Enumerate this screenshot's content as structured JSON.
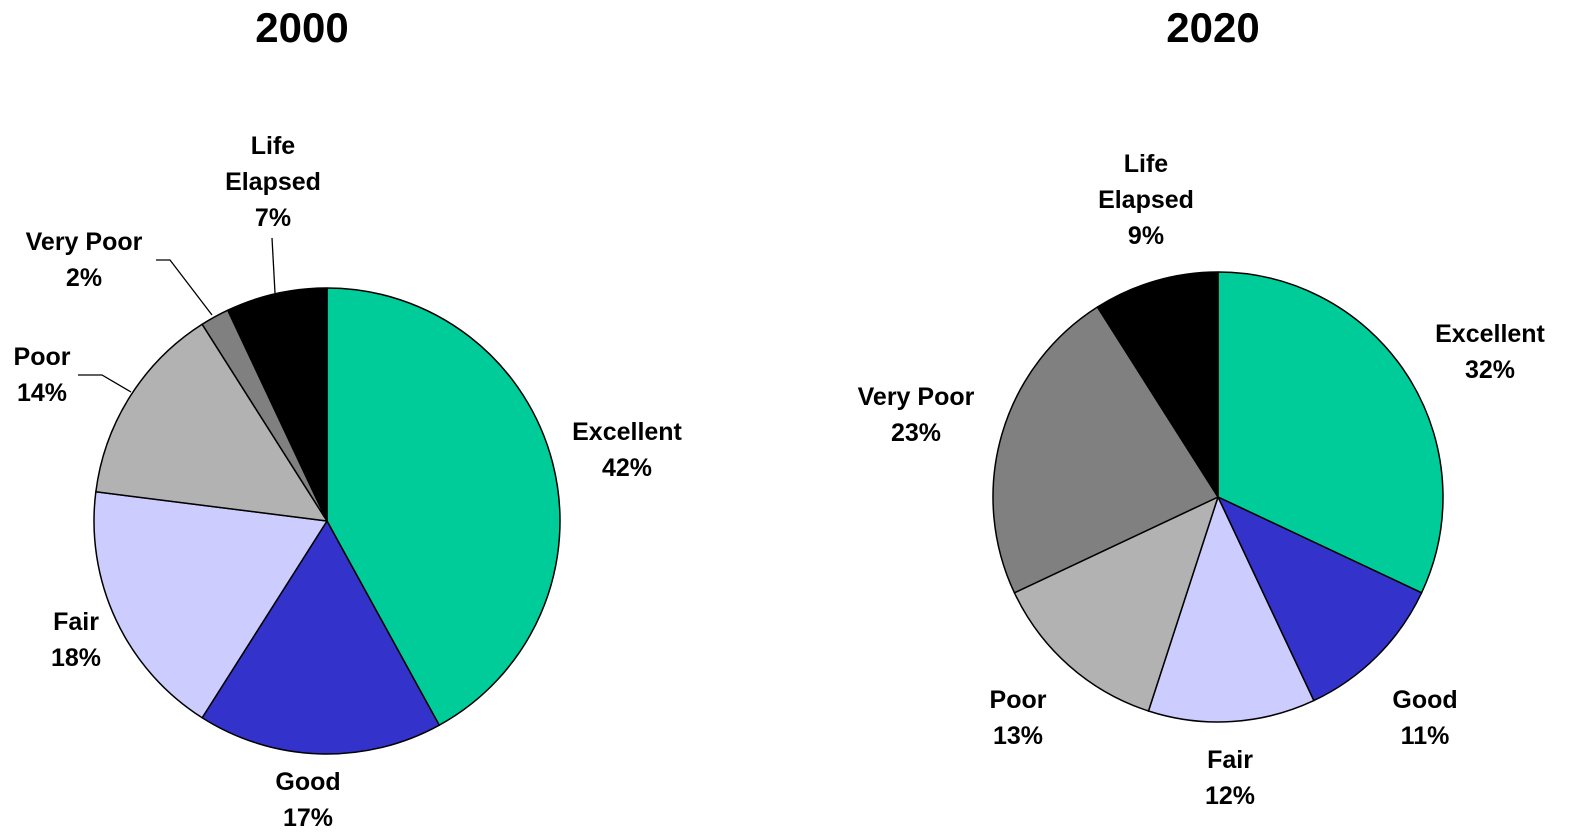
{
  "chart_data": [
    {
      "type": "pie",
      "title": "2000",
      "categories": [
        "Excellent",
        "Good",
        "Fair",
        "Poor",
        "Very Poor",
        "Life Elapsed"
      ],
      "values": [
        42,
        17,
        18,
        14,
        2,
        7
      ],
      "value_labels": [
        "42%",
        "17%",
        "18%",
        "14%",
        "2%",
        "7%"
      ],
      "colors": [
        "#00cc99",
        "#3333cc",
        "#ccccff",
        "#b2b2b2",
        "#808080",
        "#000000"
      ]
    },
    {
      "type": "pie",
      "title": "2020",
      "categories": [
        "Excellent",
        "Good",
        "Fair",
        "Poor",
        "Very Poor",
        "Life Elapsed"
      ],
      "values": [
        32,
        11,
        12,
        13,
        23,
        9
      ],
      "value_labels": [
        "32%",
        "11%",
        "12%",
        "13%",
        "23%",
        "9%"
      ],
      "colors": [
        "#00cc99",
        "#3333cc",
        "#ccccff",
        "#b2b2b2",
        "#808080",
        "#000000"
      ]
    }
  ]
}
